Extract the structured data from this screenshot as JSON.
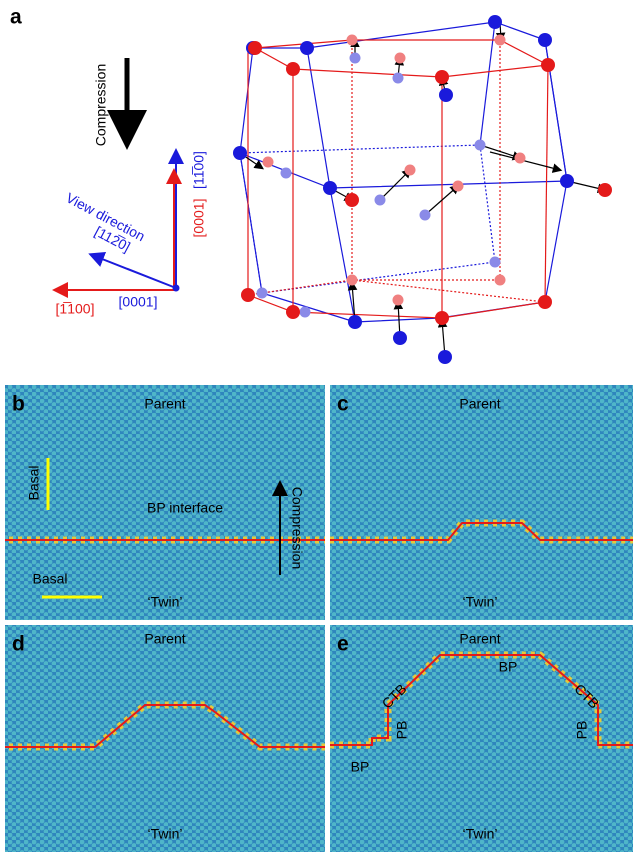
{
  "panel_a": {
    "label": "a",
    "compression": "Compression",
    "view_direction": "View direction",
    "axes": {
      "view_vector": "[112̅0]",
      "red_horizontal": "[1̅100]",
      "blue_horizontal": "[0001]",
      "red_vertical": "[0001]",
      "blue_vertical": "[11̅00]"
    }
  },
  "panels": [
    {
      "label": "b",
      "top": "Parent",
      "bottom": "‘Twin’",
      "annotations": [
        "Basal",
        "BP interface",
        "Compression",
        "Basal"
      ]
    },
    {
      "label": "c",
      "top": "Parent",
      "bottom": "‘Twin’"
    },
    {
      "label": "d",
      "top": "Parent",
      "bottom": "‘Twin’"
    },
    {
      "label": "e",
      "top": "Parent",
      "bottom": "‘Twin’",
      "annotations": [
        "CTB",
        "BP",
        "CTB",
        "PB",
        "PB",
        "BP"
      ]
    }
  ]
}
